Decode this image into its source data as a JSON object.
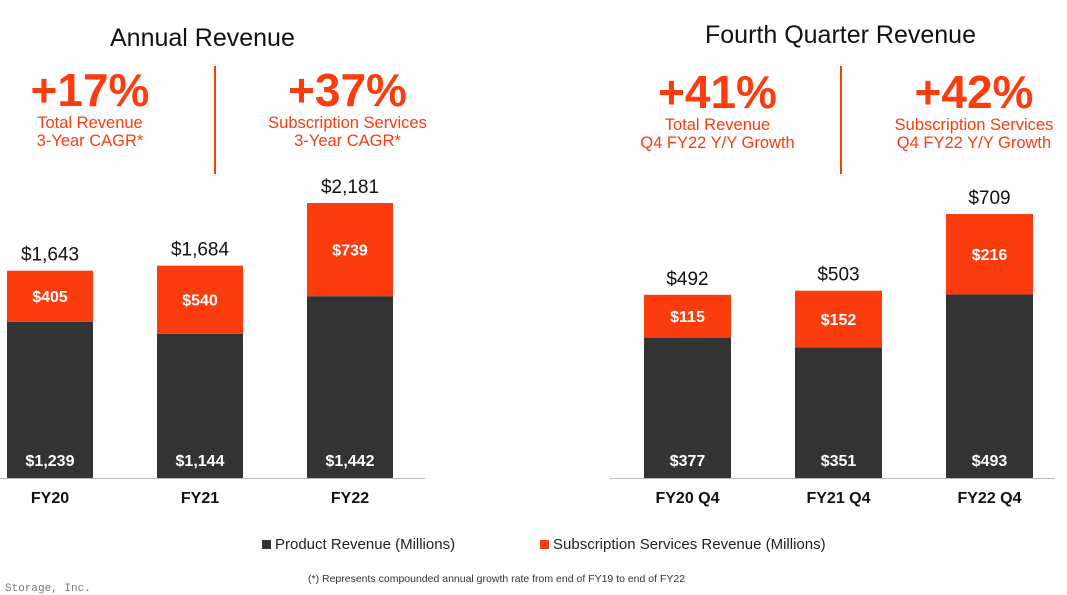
{
  "colors": {
    "accent": "#fa3c0f",
    "product": "#333333",
    "text": "#111111"
  },
  "annual": {
    "title": "Annual Revenue",
    "kpi_left": {
      "value": "+17%",
      "line1": "Total Revenue",
      "line2": "3-Year CAGR*"
    },
    "kpi_right": {
      "value": "+37%",
      "line1": "Subscription Services",
      "line2": "3-Year CAGR*"
    }
  },
  "quarter": {
    "title": "Fourth Quarter Revenue",
    "kpi_left": {
      "value": "+41%",
      "line1": "Total Revenue",
      "line2": "Q4 FY22 Y/Y Growth"
    },
    "kpi_right": {
      "value": "+42%",
      "line1": "Subscription Services",
      "line2": "Q4 FY22 Y/Y Growth"
    }
  },
  "legend": {
    "product": "Product Revenue (Millions)",
    "subscription": "Subscription Services Revenue (Millions)"
  },
  "footnote": "(*) Represents compounded annual growth rate from end of FY19 to end of FY22",
  "cutoff_text": "Pure Storage, Inc.",
  "chart_data": [
    {
      "type": "bar",
      "stacked": true,
      "title": "Annual Revenue",
      "categories": [
        "FY20",
        "FY21",
        "FY22"
      ],
      "series": [
        {
          "name": "Product Revenue (Millions)",
          "values": [
            1239,
            1144,
            1442
          ],
          "labels": [
            "$1,239",
            "$1,144",
            "$1,442"
          ]
        },
        {
          "name": "Subscription Services Revenue (Millions)",
          "values": [
            405,
            540,
            739
          ],
          "labels": [
            "$405",
            "$540",
            "$739"
          ]
        }
      ],
      "totals": [
        "$1,643",
        "$1,684",
        "$2,181"
      ],
      "ylim": [
        0,
        2300
      ]
    },
    {
      "type": "bar",
      "stacked": true,
      "title": "Fourth Quarter Revenue",
      "categories": [
        "FY20 Q4",
        "FY21 Q4",
        "FY22 Q4"
      ],
      "series": [
        {
          "name": "Product Revenue (Millions)",
          "values": [
            377,
            351,
            493
          ],
          "labels": [
            "$377",
            "$351",
            "$493"
          ]
        },
        {
          "name": "Subscription Services Revenue (Millions)",
          "values": [
            115,
            152,
            216
          ],
          "labels": [
            "$115",
            "$152",
            "$216"
          ]
        }
      ],
      "totals": [
        "$492",
        "$503",
        "$709"
      ],
      "ylim": [
        0,
        760
      ]
    }
  ]
}
